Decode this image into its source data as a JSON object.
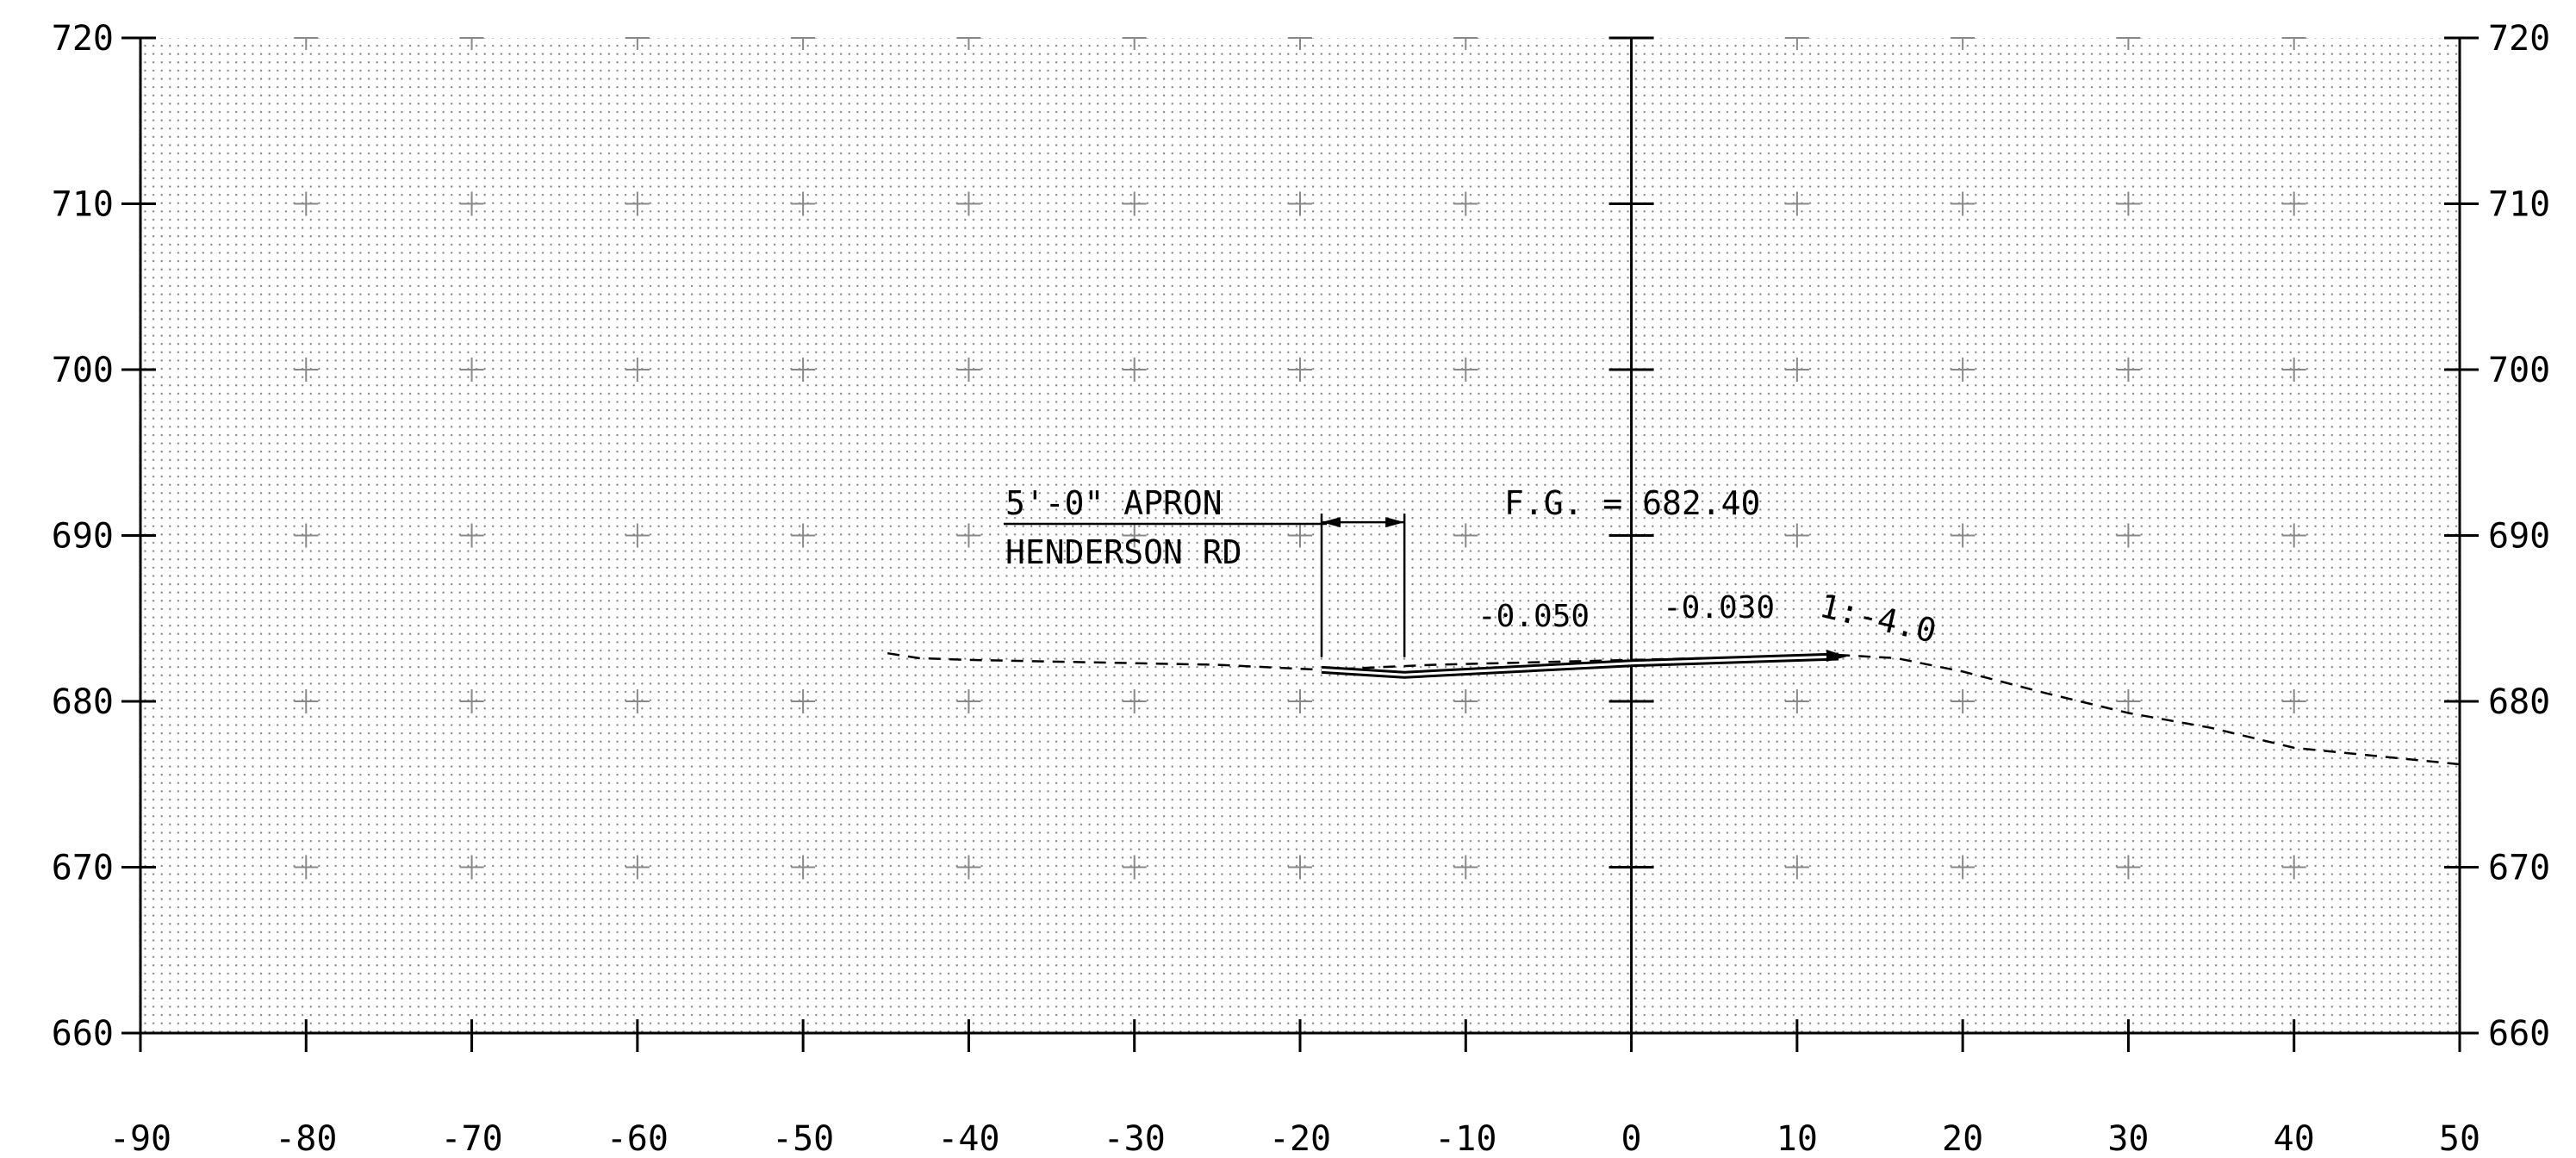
{
  "chart_data": {
    "type": "cross-section",
    "xlim": [
      -90,
      50
    ],
    "ylim": [
      660,
      720
    ],
    "x_ticks": [
      -90,
      -80,
      -70,
      -60,
      -50,
      -40,
      -30,
      -20,
      -10,
      0,
      10,
      20,
      30,
      40,
      50
    ],
    "y_ticks": [
      660,
      670,
      680,
      690,
      700,
      710,
      720
    ],
    "x_tick_labels": [
      "-90",
      "-80",
      "-70",
      "-60",
      "-50",
      "-40",
      "-30",
      "-20",
      "-10",
      "0",
      "10",
      "20",
      "30",
      "40",
      "50"
    ],
    "y_tick_labels": [
      "660",
      "670",
      "680",
      "690",
      "700",
      "710",
      "720"
    ],
    "grid": "dotted",
    "centerline_x": 0,
    "existing_ground": [
      {
        "x": -44.9,
        "y": 682.9
      },
      {
        "x": -43,
        "y": 682.6
      },
      {
        "x": -40,
        "y": 682.5
      },
      {
        "x": -30,
        "y": 682.3
      },
      {
        "x": -25,
        "y": 682.2
      },
      {
        "x": -18.7,
        "y": 681.9
      },
      {
        "x": -12,
        "y": 682.2
      },
      {
        "x": 0,
        "y": 682.5
      },
      {
        "x": 12.5,
        "y": 682.8
      },
      {
        "x": 16,
        "y": 682.6
      },
      {
        "x": 20,
        "y": 681.8
      },
      {
        "x": 25,
        "y": 680.5
      },
      {
        "x": 30,
        "y": 679.3
      },
      {
        "x": 35,
        "y": 678.4
      },
      {
        "x": 40,
        "y": 677.2
      },
      {
        "x": 45,
        "y": 676.7
      },
      {
        "x": 50,
        "y": 676.2
      }
    ],
    "proposed_section": [
      {
        "x": -18.7,
        "y": 681.9
      },
      {
        "x": -13.7,
        "y": 681.6
      },
      {
        "x": 0,
        "y": 682.3
      },
      {
        "x": 12.5,
        "y": 682.7
      }
    ],
    "dimension": {
      "x1": -18.7,
      "x2": -13.7,
      "y": 690.8,
      "ext_from": 682.4
    },
    "annotations": {
      "apron": "5'-0\" APRON",
      "road": "HENDERSON RD",
      "fg": "F.G. = 682.40",
      "slope1": "-0.050",
      "slope2": "-0.030",
      "side_slope": "1:-4.0"
    }
  }
}
